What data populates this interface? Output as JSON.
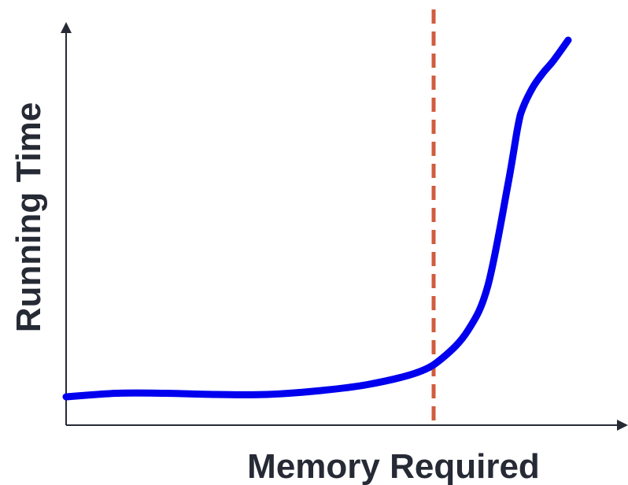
{
  "chart_data": {
    "type": "line",
    "title": "",
    "xlabel": "Memory Required",
    "ylabel": "Running Time",
    "grid": false,
    "legend": "none",
    "ticks": "none",
    "xlim": [
      0,
      100
    ],
    "ylim": [
      0,
      100
    ],
    "series": [
      {
        "color": "#0000ee",
        "x": [
          0,
          10,
          20,
          30,
          40,
          50,
          60,
          70,
          75,
          80,
          84,
          88,
          90,
          91,
          93,
          95,
          97,
          100
        ],
        "y": [
          7.2,
          8.1,
          8.1,
          7.8,
          7.8,
          8.7,
          10.3,
          13.4,
          17.1,
          24.0,
          35.4,
          61.1,
          76.0,
          80.7,
          85.9,
          89.5,
          92.5,
          97.8
        ]
      }
    ],
    "reference_lines": [
      {
        "orientation": "vertical",
        "x": 73.2,
        "style": "dashed",
        "color": "#d05c3e"
      }
    ],
    "colors": {
      "axis": "#262a35",
      "line": "#0000ee",
      "reference": "#d05c3e",
      "text": "#262a35"
    }
  }
}
